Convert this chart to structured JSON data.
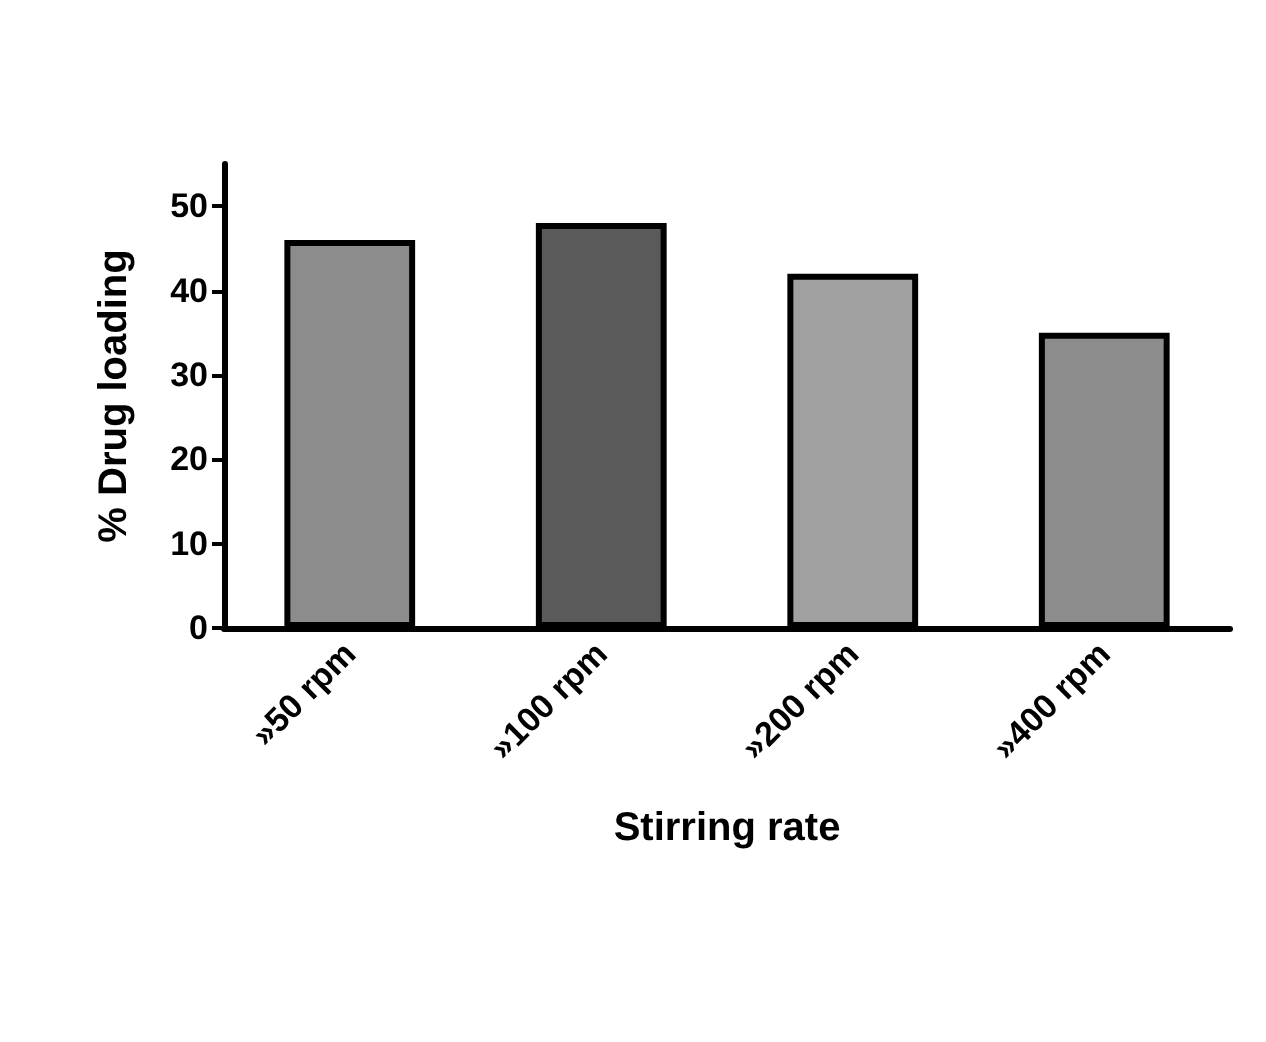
{
  "chart_data": {
    "type": "bar",
    "xlabel": "Stirring rate",
    "ylabel": "% Drug loading",
    "categories": [
      "»50 rpm",
      "»100 rpm",
      "»200 rpm",
      "»400 rpm"
    ],
    "values": [
      46,
      48,
      42,
      35
    ],
    "colors": [
      "#8c8c8c",
      "#5a5a5a",
      "#a0a0a0",
      "#8c8c8c"
    ],
    "ylim": [
      0,
      55
    ],
    "yticks": [
      0,
      10,
      20,
      30,
      40,
      50
    ]
  }
}
